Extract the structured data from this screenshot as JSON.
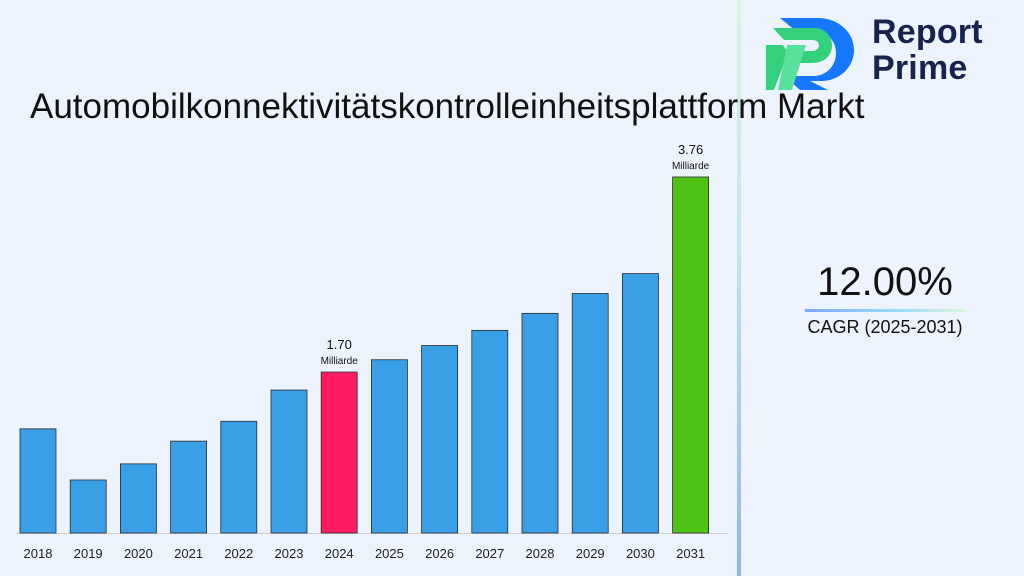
{
  "brand": {
    "line1": "Report",
    "line2": "Prime"
  },
  "colors": {
    "bar_default": "#39a0e8",
    "bar_highlight": "#ff1c63",
    "bar_final": "#4fc216",
    "text": "#111111",
    "logo_dark": "#15234d",
    "logo_blue": "#1677ff",
    "logo_green": "#34d17c"
  },
  "cagr": {
    "value": "12.00%",
    "label": "CAGR (2025-2031)"
  },
  "chart_data": {
    "type": "bar",
    "title": "Automobilkonnektivitätskontrolleinheitsplattform Markt",
    "categories": [
      "2018",
      "2019",
      "2020",
      "2021",
      "2022",
      "2023",
      "2024",
      "2025",
      "2026",
      "2027",
      "2028",
      "2029",
      "2030",
      "2031"
    ],
    "values": [
      1.1,
      0.56,
      0.73,
      0.97,
      1.18,
      1.51,
      1.7,
      1.83,
      1.98,
      2.14,
      2.32,
      2.53,
      2.74,
      3.76
    ],
    "ylim": [
      0,
      3.76
    ],
    "grid": false,
    "legend": "none",
    "data_labels": [
      {
        "category": "2024",
        "value": "1.70",
        "unit": "Milliarde"
      },
      {
        "category": "2031",
        "value": "3.76",
        "unit": "Milliarde"
      }
    ],
    "highlight": {
      "2024": "highlight",
      "2031": "final"
    }
  }
}
